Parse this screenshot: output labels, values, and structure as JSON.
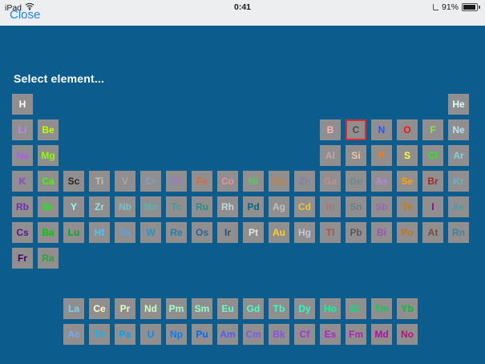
{
  "status_bar": {
    "carrier": "iPad",
    "wifi_icon": "wifi-icon",
    "time": "0:41",
    "orientation_lock_icon": "orientation-lock-icon",
    "battery_percent": "91%",
    "battery_level": 0.91
  },
  "nav": {
    "close_label": "Close"
  },
  "screen": {
    "title": "Select element..."
  },
  "colors": {
    "background": "#0D5C8E",
    "statusbar_bg": "#ECEEF0",
    "button": "#908E8E",
    "selected_border": "#DE2B2B",
    "accent_blue": "#1E82E8",
    "title_color": "#FFFFFF"
  },
  "table": {
    "selected_symbol": "C",
    "elements": [
      {
        "symbol": "H",
        "row": 1,
        "col": 1,
        "color": "#FFFFFF"
      },
      {
        "symbol": "He",
        "row": 1,
        "col": 18,
        "color": "#D9FFFF"
      },
      {
        "symbol": "Li",
        "row": 2,
        "col": 1,
        "color": "#CC80FF"
      },
      {
        "symbol": "Be",
        "row": 2,
        "col": 2,
        "color": "#C2FF00"
      },
      {
        "symbol": "B",
        "row": 2,
        "col": 13,
        "color": "#FFB5B5"
      },
      {
        "symbol": "C",
        "row": 2,
        "col": 14,
        "color": "#4A4A4A"
      },
      {
        "symbol": "N",
        "row": 2,
        "col": 15,
        "color": "#3050F8"
      },
      {
        "symbol": "O",
        "row": 2,
        "col": 16,
        "color": "#FF0D0D"
      },
      {
        "symbol": "F",
        "row": 2,
        "col": 17,
        "color": "#90E050"
      },
      {
        "symbol": "Ne",
        "row": 2,
        "col": 18,
        "color": "#B3E3F5"
      },
      {
        "symbol": "Na",
        "row": 3,
        "col": 1,
        "color": "#AB5CF2"
      },
      {
        "symbol": "Mg",
        "row": 3,
        "col": 2,
        "color": "#8AFF00"
      },
      {
        "symbol": "Al",
        "row": 3,
        "col": 13,
        "color": "#BFA6A6"
      },
      {
        "symbol": "Si",
        "row": 3,
        "col": 14,
        "color": "#F0C8A0"
      },
      {
        "symbol": "P",
        "row": 3,
        "col": 15,
        "color": "#FF8000"
      },
      {
        "symbol": "S",
        "row": 3,
        "col": 16,
        "color": "#FFFF30"
      },
      {
        "symbol": "Cl",
        "row": 3,
        "col": 17,
        "color": "#1FF01F"
      },
      {
        "symbol": "Ar",
        "row": 3,
        "col": 18,
        "color": "#80D1E3"
      },
      {
        "symbol": "K",
        "row": 4,
        "col": 1,
        "color": "#8F40D4"
      },
      {
        "symbol": "Ca",
        "row": 4,
        "col": 2,
        "color": "#3DFF00"
      },
      {
        "symbol": "Sc",
        "row": 4,
        "col": 3,
        "color": "#262626"
      },
      {
        "symbol": "Ti",
        "row": 4,
        "col": 4,
        "color": "#BFC2C7"
      },
      {
        "symbol": "V",
        "row": 4,
        "col": 5,
        "color": "#A6A6AB"
      },
      {
        "symbol": "Cr",
        "row": 4,
        "col": 6,
        "color": "#8A99C7"
      },
      {
        "symbol": "Mn",
        "row": 4,
        "col": 7,
        "color": "#9C7AC7"
      },
      {
        "symbol": "Fe",
        "row": 4,
        "col": 8,
        "color": "#E06633"
      },
      {
        "symbol": "Co",
        "row": 4,
        "col": 9,
        "color": "#F090A0"
      },
      {
        "symbol": "Ni",
        "row": 4,
        "col": 10,
        "color": "#50D050"
      },
      {
        "symbol": "Cu",
        "row": 4,
        "col": 11,
        "color": "#C88033"
      },
      {
        "symbol": "Zn",
        "row": 4,
        "col": 12,
        "color": "#7D80B0"
      },
      {
        "symbol": "Ga",
        "row": 4,
        "col": 13,
        "color": "#C28F8F"
      },
      {
        "symbol": "Ge",
        "row": 4,
        "col": 14,
        "color": "#668F8F"
      },
      {
        "symbol": "As",
        "row": 4,
        "col": 15,
        "color": "#BD80E3"
      },
      {
        "symbol": "Se",
        "row": 4,
        "col": 16,
        "color": "#FFA100"
      },
      {
        "symbol": "Br",
        "row": 4,
        "col": 17,
        "color": "#A62929"
      },
      {
        "symbol": "Kr",
        "row": 4,
        "col": 18,
        "color": "#5CB8D1"
      },
      {
        "symbol": "Rb",
        "row": 5,
        "col": 1,
        "color": "#702EB0"
      },
      {
        "symbol": "Sr",
        "row": 5,
        "col": 2,
        "color": "#00FF00"
      },
      {
        "symbol": "Y",
        "row": 5,
        "col": 3,
        "color": "#94FFFF"
      },
      {
        "symbol": "Zr",
        "row": 5,
        "col": 4,
        "color": "#94E0E0"
      },
      {
        "symbol": "Nb",
        "row": 5,
        "col": 5,
        "color": "#73C2C9"
      },
      {
        "symbol": "Mo",
        "row": 5,
        "col": 6,
        "color": "#54B5B5"
      },
      {
        "symbol": "Tc",
        "row": 5,
        "col": 7,
        "color": "#3B9E9E"
      },
      {
        "symbol": "Ru",
        "row": 5,
        "col": 8,
        "color": "#248F8F"
      },
      {
        "symbol": "Rh",
        "row": 5,
        "col": 9,
        "color": "#BFD6D9"
      },
      {
        "symbol": "Pd",
        "row": 5,
        "col": 10,
        "color": "#006985"
      },
      {
        "symbol": "Ag",
        "row": 5,
        "col": 11,
        "color": "#C0C0C0"
      },
      {
        "symbol": "Cd",
        "row": 5,
        "col": 12,
        "color": "#E8C43F"
      },
      {
        "symbol": "In",
        "row": 5,
        "col": 13,
        "color": "#A67573"
      },
      {
        "symbol": "Sn",
        "row": 5,
        "col": 14,
        "color": "#668080"
      },
      {
        "symbol": "Sb",
        "row": 5,
        "col": 15,
        "color": "#9E63B5"
      },
      {
        "symbol": "Te",
        "row": 5,
        "col": 16,
        "color": "#D47A00"
      },
      {
        "symbol": "I",
        "row": 5,
        "col": 17,
        "color": "#940094"
      },
      {
        "symbol": "Xe",
        "row": 5,
        "col": 18,
        "color": "#429EB0"
      },
      {
        "symbol": "Cs",
        "row": 6,
        "col": 1,
        "color": "#57178F"
      },
      {
        "symbol": "Ba",
        "row": 6,
        "col": 2,
        "color": "#00C900"
      },
      {
        "symbol": "Lu",
        "row": 6,
        "col": 3,
        "color": "#00AB24"
      },
      {
        "symbol": "Hf",
        "row": 6,
        "col": 4,
        "color": "#4DC2FF"
      },
      {
        "symbol": "Ta",
        "row": 6,
        "col": 5,
        "color": "#4DA6FF"
      },
      {
        "symbol": "W",
        "row": 6,
        "col": 6,
        "color": "#2194D6"
      },
      {
        "symbol": "Re",
        "row": 6,
        "col": 7,
        "color": "#267DAB"
      },
      {
        "symbol": "Os",
        "row": 6,
        "col": 8,
        "color": "#266696"
      },
      {
        "symbol": "Ir",
        "row": 6,
        "col": 9,
        "color": "#175487"
      },
      {
        "symbol": "Pt",
        "row": 6,
        "col": 10,
        "color": "#E2E4EA"
      },
      {
        "symbol": "Au",
        "row": 6,
        "col": 11,
        "color": "#FFD123"
      },
      {
        "symbol": "Hg",
        "row": 6,
        "col": 12,
        "color": "#C4C6D6"
      },
      {
        "symbol": "Tl",
        "row": 6,
        "col": 13,
        "color": "#A6544D"
      },
      {
        "symbol": "Pb",
        "row": 6,
        "col": 14,
        "color": "#575961"
      },
      {
        "symbol": "Bi",
        "row": 6,
        "col": 15,
        "color": "#9E4FB5"
      },
      {
        "symbol": "Po",
        "row": 6,
        "col": 16,
        "color": "#C4761A"
      },
      {
        "symbol": "At",
        "row": 6,
        "col": 17,
        "color": "#754F45"
      },
      {
        "symbol": "Rn",
        "row": 6,
        "col": 18,
        "color": "#428296"
      },
      {
        "symbol": "Fr",
        "row": 7,
        "col": 1,
        "color": "#420066"
      },
      {
        "symbol": "Ra",
        "row": 7,
        "col": 2,
        "color": "#28A439"
      },
      {
        "symbol": "La",
        "row": 9,
        "col": 3,
        "color": "#70D4FF"
      },
      {
        "symbol": "Ce",
        "row": 9,
        "col": 4,
        "color": "#FFFFC7"
      },
      {
        "symbol": "Pr",
        "row": 9,
        "col": 5,
        "color": "#D9FFC7"
      },
      {
        "symbol": "Nd",
        "row": 9,
        "col": 6,
        "color": "#C7FFC7"
      },
      {
        "symbol": "Pm",
        "row": 9,
        "col": 7,
        "color": "#A3FFC7"
      },
      {
        "symbol": "Sm",
        "row": 9,
        "col": 8,
        "color": "#8FFFC7"
      },
      {
        "symbol": "Eu",
        "row": 9,
        "col": 9,
        "color": "#61FFC7"
      },
      {
        "symbol": "Gd",
        "row": 9,
        "col": 10,
        "color": "#45FFC7"
      },
      {
        "symbol": "Tb",
        "row": 9,
        "col": 11,
        "color": "#30FFC7"
      },
      {
        "symbol": "Dy",
        "row": 9,
        "col": 12,
        "color": "#1FFFC7"
      },
      {
        "symbol": "Ho",
        "row": 9,
        "col": 13,
        "color": "#00FF9C"
      },
      {
        "symbol": "Er",
        "row": 9,
        "col": 14,
        "color": "#00E675"
      },
      {
        "symbol": "Tm",
        "row": 9,
        "col": 15,
        "color": "#00D452"
      },
      {
        "symbol": "Yb",
        "row": 9,
        "col": 16,
        "color": "#00BF38"
      },
      {
        "symbol": "Ac",
        "row": 10,
        "col": 3,
        "color": "#70ABFA"
      },
      {
        "symbol": "Th",
        "row": 10,
        "col": 4,
        "color": "#00BAFF"
      },
      {
        "symbol": "Pa",
        "row": 10,
        "col": 5,
        "color": "#00A1FF"
      },
      {
        "symbol": "U",
        "row": 10,
        "col": 6,
        "color": "#008FFF"
      },
      {
        "symbol": "Np",
        "row": 10,
        "col": 7,
        "color": "#0080FF"
      },
      {
        "symbol": "Pu",
        "row": 10,
        "col": 8,
        "color": "#006BFF"
      },
      {
        "symbol": "Am",
        "row": 10,
        "col": 9,
        "color": "#545CF2"
      },
      {
        "symbol": "Cm",
        "row": 10,
        "col": 10,
        "color": "#785CE3"
      },
      {
        "symbol": "Bk",
        "row": 10,
        "col": 11,
        "color": "#8A4FE3"
      },
      {
        "symbol": "Cf",
        "row": 10,
        "col": 12,
        "color": "#A136D4"
      },
      {
        "symbol": "Es",
        "row": 10,
        "col": 13,
        "color": "#B31FD4"
      },
      {
        "symbol": "Fm",
        "row": 10,
        "col": 14,
        "color": "#B31FBA"
      },
      {
        "symbol": "Md",
        "row": 10,
        "col": 15,
        "color": "#B30DA6"
      },
      {
        "symbol": "No",
        "row": 10,
        "col": 16,
        "color": "#BD0D87"
      }
    ]
  }
}
